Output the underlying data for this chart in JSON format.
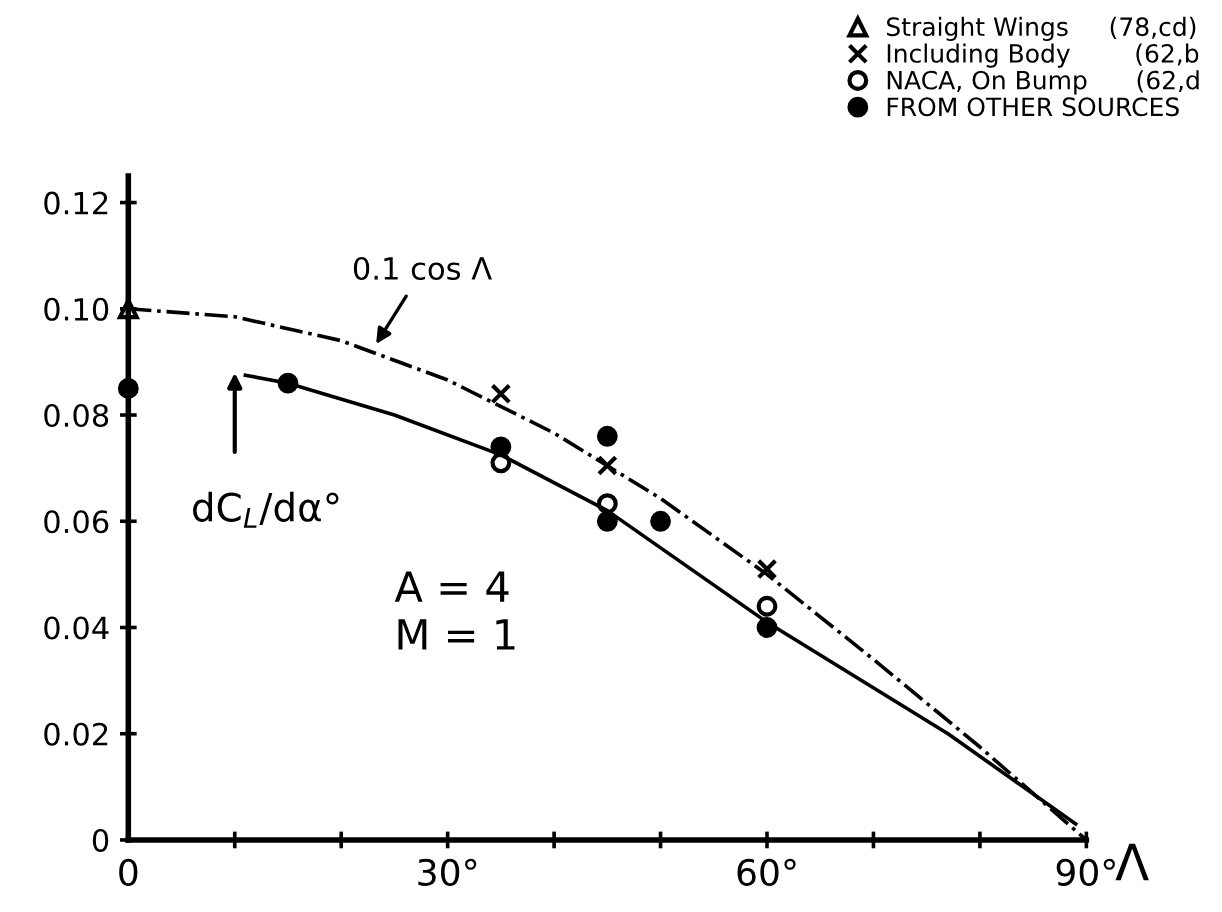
{
  "chart_data": {
    "type": "scatter",
    "xlabel": "Λ",
    "ylabel": "dC$_{L}$/dα°",
    "xlim": [
      0,
      90
    ],
    "ylim": [
      0,
      0.125
    ],
    "xticks": [
      {
        "value": 0,
        "label": "0"
      },
      {
        "value": 10,
        "label": null
      },
      {
        "value": 20,
        "label": null
      },
      {
        "value": 30,
        "label": "30°"
      },
      {
        "value": 40,
        "label": null
      },
      {
        "value": 50,
        "label": null
      },
      {
        "value": 60,
        "label": "60°"
      },
      {
        "value": 70,
        "label": null
      },
      {
        "value": 80,
        "label": null
      },
      {
        "value": 90,
        "label": "90°"
      }
    ],
    "yticks": [
      0,
      0.02,
      0.04,
      0.06,
      0.08,
      {
        "value": 0.1,
        "label": "0.10"
      },
      0.12
    ],
    "grid": false,
    "legend": "top right",
    "series": [
      {
        "type": "line",
        "line_style": "dashdot",
        "marker": "none",
        "color": "#000000",
        "x": [
          0,
          10,
          20,
          30,
          40,
          50,
          60,
          70,
          80,
          90
        ],
        "values": [
          0.1,
          0.0985,
          0.094,
          0.0866,
          0.0766,
          0.0643,
          0.05,
          0.034,
          0.0175,
          0
        ]
      },
      {
        "type": "line",
        "line_style": "solid",
        "marker": "none",
        "color": "#000000",
        "x": [
          11,
          15,
          25,
          35,
          45,
          60,
          77,
          89
        ],
        "values": [
          0.0875,
          0.086,
          0.08,
          0.0725,
          0.062,
          0.041,
          0.02,
          0.003
        ]
      },
      {
        "name": "Straight Wings     (78,cd)",
        "marker": "triangle",
        "color": "#000000",
        "x": [
          0
        ],
        "values": [
          0.1
        ]
      },
      {
        "name": "Including Body        (62,b",
        "marker": "cross",
        "color": "#000000",
        "x": [
          35,
          45,
          60
        ],
        "values": [
          0.084,
          0.0705,
          0.051
        ]
      },
      {
        "name": "NACA, On Bump      (62,d",
        "marker": "circle",
        "color": "#000000",
        "x": [
          35,
          45,
          60
        ],
        "values": [
          0.071,
          0.0633,
          0.044
        ]
      },
      {
        "name": "FROM OTHER SOURCES",
        "marker": "circle",
        "color": "#000000",
        "x": [
          0,
          15,
          35,
          45,
          45,
          50,
          60
        ],
        "values": [
          0.085,
          0.086,
          0.074,
          0.076,
          0.06,
          0.06,
          0.04
        ]
      }
    ],
    "annotations": [
      {
        "text": "0.1 cos Λ",
        "x": 23,
        "y": 0.0925
      },
      "A = 4",
      "M = 1"
    ]
  }
}
